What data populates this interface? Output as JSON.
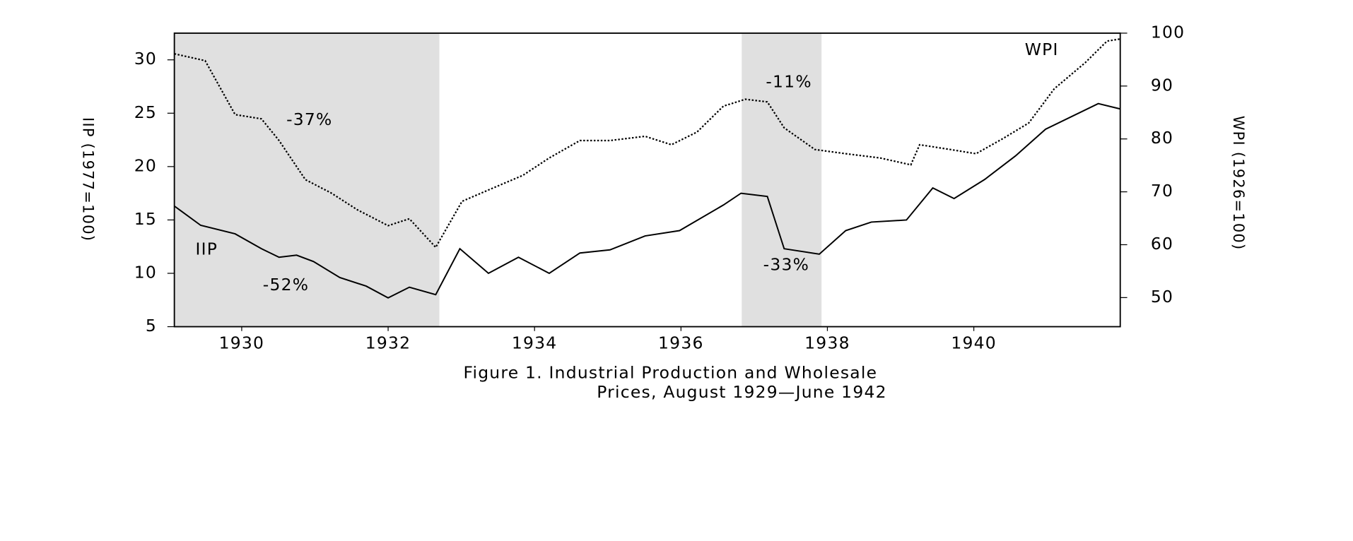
{
  "chart_data": {
    "type": "line",
    "title": [
      "Figure 1. Industrial Production and Wholesale",
      "Prices, August 1929—June 1942"
    ],
    "y_label": "IIP (1977=100)",
    "y2_label": "WPI (1926=100)",
    "xlim": [
      1929.58,
      1942.5
    ],
    "xticks": [
      {
        "value": 1930.5,
        "label": "1930"
      },
      {
        "value": 1932.5,
        "label": "1932"
      },
      {
        "value": 1934.5,
        "label": "1934"
      },
      {
        "value": 1936.5,
        "label": "1936"
      },
      {
        "value": 1938.5,
        "label": "1938"
      },
      {
        "value": 1940.5,
        "label": "1940"
      }
    ],
    "ylim": [
      5,
      32.5
    ],
    "yticks": [
      5,
      10,
      15,
      20,
      25,
      30
    ],
    "y2lim": [
      44.5,
      100
    ],
    "y2ticks": [
      50,
      60,
      70,
      80,
      90,
      100
    ],
    "recessions": [
      [
        1929.58,
        1933.2
      ],
      [
        1937.33,
        1938.42
      ]
    ],
    "recession_color": "#e0e0e0",
    "series": [
      {
        "name": "IIP",
        "color": "#000000",
        "style": "solid",
        "x": [
          1929.58,
          1929.94,
          1930.41,
          1930.77,
          1931.01,
          1931.25,
          1931.48,
          1931.84,
          1932.2,
          1932.5,
          1932.79,
          1933.15,
          1933.48,
          1933.87,
          1934.28,
          1934.7,
          1935.12,
          1935.53,
          1936.01,
          1936.48,
          1937.08,
          1937.32,
          1937.68,
          1937.91,
          1938.39,
          1938.75,
          1939.1,
          1939.58,
          1939.94,
          1940.23,
          1940.65,
          1941.07,
          1941.48,
          1942.2,
          1942.5
        ],
        "values": [
          16.3,
          14.5,
          13.7,
          12.3,
          11.5,
          11.7,
          11.1,
          9.6,
          8.8,
          7.7,
          8.7,
          8.0,
          12.3,
          10.0,
          11.5,
          10.0,
          11.9,
          12.2,
          13.5,
          14.0,
          16.4,
          17.5,
          17.2,
          12.3,
          11.8,
          14.0,
          14.8,
          15.0,
          18.0,
          17.0,
          18.8,
          21.0,
          23.5,
          25.9,
          25.4
        ]
      },
      {
        "name": "WPI",
        "color": "#000000",
        "style": "dotted",
        "axis": "y2",
        "x": [
          1929.58,
          1930.0,
          1930.41,
          1930.77,
          1931.01,
          1931.37,
          1931.72,
          1932.08,
          1932.5,
          1932.79,
          1933.15,
          1933.51,
          1933.93,
          1934.34,
          1934.7,
          1935.12,
          1935.53,
          1936.01,
          1936.37,
          1936.72,
          1937.08,
          1937.38,
          1937.68,
          1937.91,
          1938.33,
          1938.75,
          1939.22,
          1939.64,
          1939.76,
          1940.18,
          1940.53,
          1940.89,
          1941.25,
          1941.6,
          1942.02,
          1942.32,
          1942.5
        ],
        "values": [
          96.1,
          94.8,
          84.6,
          83.8,
          79.7,
          72.3,
          69.8,
          66.6,
          63.6,
          64.9,
          59.5,
          68.2,
          70.7,
          73.1,
          76.4,
          79.7,
          79.7,
          80.5,
          78.9,
          81.3,
          86.2,
          87.5,
          87.0,
          82.1,
          78.0,
          77.2,
          76.4,
          75.1,
          78.9,
          78.0,
          77.2,
          80.0,
          83.0,
          89.5,
          94.4,
          98.5,
          98.9
        ]
      }
    ],
    "annotations": [
      "WPI",
      "IIP",
      "-37%",
      "-52%",
      "-11%",
      "-33%"
    ]
  }
}
